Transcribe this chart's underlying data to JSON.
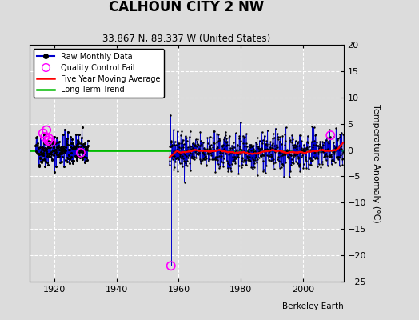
{
  "title": "CALHOUN CITY 2 NW",
  "subtitle": "33.867 N, 89.337 W (United States)",
  "ylabel": "Temperature Anomaly (°C)",
  "attribution": "Berkeley Earth",
  "xlim": [
    1912,
    2013
  ],
  "ylim": [
    -25,
    20
  ],
  "yticks": [
    -25,
    -20,
    -15,
    -10,
    -5,
    0,
    5,
    10,
    15,
    20
  ],
  "xticks": [
    1920,
    1940,
    1960,
    1980,
    2000
  ],
  "bg_color": "#dcdcdc",
  "plot_bg_color": "#dcdcdc",
  "grid_color": "#ffffff",
  "raw_color": "#0000cc",
  "ma_color": "#ff0000",
  "trend_color": "#00bb00",
  "qc_color": "#ff00ff",
  "seed": 42,
  "early_start": 1914.0,
  "early_end": 1931.0,
  "gap_start": 1931.0,
  "gap_end": 1957.0,
  "main_start": 1957.0,
  "main_end": 2013.0,
  "qc_early_x": [
    1916.4,
    1917.0,
    1917.5,
    1918.0,
    1918.3,
    1919.0
  ],
  "qc_early_y": [
    3.2,
    2.5,
    3.8,
    1.8,
    2.2,
    1.5
  ],
  "qc_gap_x": [
    1928.5
  ],
  "qc_gap_y": [
    -0.5
  ],
  "qc_outlier_x": [
    1957.5
  ],
  "qc_outlier_y": [
    -22.0
  ],
  "qc_late_x": [
    2008.8
  ],
  "qc_late_y": [
    2.8
  ],
  "figsize": [
    5.24,
    4.0
  ],
  "dpi": 100
}
